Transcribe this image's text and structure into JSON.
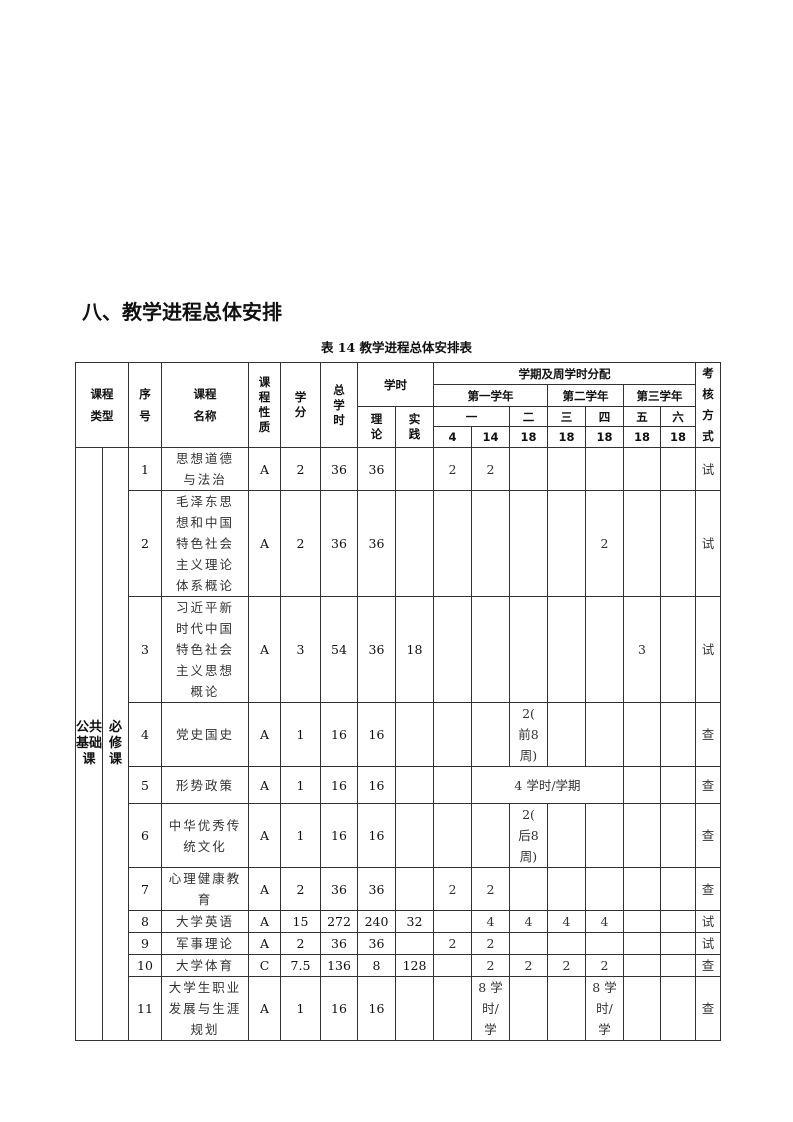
{
  "section_title": "八、教学进程总体安排",
  "table_caption": "表 14   教学进程总体安排表",
  "header": {
    "course_type": "课程\n类型",
    "seq": "序\n号",
    "course_name": "课程\n名称",
    "nature": "课程性质",
    "credit": "学分",
    "total_hours": "总学时",
    "hours": "学时",
    "theory": "理论",
    "practice": "实践",
    "semester_dist": "学期及周学时分配",
    "exam": "考核方式",
    "years": [
      "第一学年",
      "第二学年",
      "第三学年"
    ],
    "semesters": [
      "一",
      "二",
      "三",
      "四",
      "五",
      "六"
    ],
    "weeks": [
      "4",
      "14",
      "18",
      "18",
      "18",
      "18",
      "18"
    ]
  },
  "category": {
    "main": "公共基础课",
    "sub": "必修课"
  },
  "rows": [
    {
      "seq": "1",
      "name": "思想道德\n与法治",
      "nature": "A",
      "credit": "2",
      "total": "36",
      "theory": "36",
      "practice": "",
      "sem": [
        "2",
        "2",
        "",
        "",
        "",
        "",
        ""
      ],
      "exam": "试"
    },
    {
      "seq": "2",
      "name": "毛泽东思\n想和中国\n特色社会\n主义理论\n体系概论",
      "nature": "A",
      "credit": "2",
      "total": "36",
      "theory": "36",
      "practice": "",
      "sem": [
        "",
        "",
        "",
        "",
        "2",
        "",
        ""
      ],
      "exam": "试"
    },
    {
      "seq": "3",
      "name": "习近平新\n时代中国\n特色社会\n主义思想\n概论",
      "nature": "A",
      "credit": "3",
      "total": "54",
      "theory": "36",
      "practice": "18",
      "sem": [
        "",
        "",
        "",
        "",
        "",
        "3",
        ""
      ],
      "exam": "试"
    },
    {
      "seq": "4",
      "name": "党史国史",
      "nature": "A",
      "credit": "1",
      "total": "16",
      "theory": "16",
      "practice": "",
      "sem": [
        "",
        "",
        "2(\n前8\n周)",
        "",
        "",
        "",
        ""
      ],
      "exam": "查"
    },
    {
      "seq": "5",
      "name": "形势政策",
      "nature": "A",
      "credit": "1",
      "total": "16",
      "theory": "16",
      "practice": "",
      "merged": "4 学时/学期",
      "exam": "查"
    },
    {
      "seq": "6",
      "name": "中华优秀传\n统文化",
      "nature": "A",
      "credit": "1",
      "total": "16",
      "theory": "16",
      "practice": "",
      "sem": [
        "",
        "",
        "2(\n后8\n周)",
        "",
        "",
        "",
        ""
      ],
      "exam": "查"
    },
    {
      "seq": "7",
      "name": "心理健康教\n育",
      "nature": "A",
      "credit": "2",
      "total": "36",
      "theory": "36",
      "practice": "",
      "sem": [
        "2",
        "2",
        "",
        "",
        "",
        "",
        ""
      ],
      "exam": "查"
    },
    {
      "seq": "8",
      "name": "大学英语",
      "nature": "A",
      "credit": "15",
      "total": "272",
      "theory": "240",
      "practice": "32",
      "sem": [
        "",
        "4",
        "4",
        "4",
        "4",
        "",
        ""
      ],
      "exam": "试"
    },
    {
      "seq": "9",
      "name": "军事理论",
      "nature": "A",
      "credit": "2",
      "total": "36",
      "theory": "36",
      "practice": "",
      "sem": [
        "2",
        "2",
        "",
        "",
        "",
        "",
        ""
      ],
      "exam": "试"
    },
    {
      "seq": "10",
      "name": "大学体育",
      "nature": "C",
      "credit": "7.5",
      "total": "136",
      "theory": "8",
      "practice": "128",
      "sem": [
        "",
        "2",
        "2",
        "2",
        "2",
        "",
        ""
      ],
      "exam": "查"
    },
    {
      "seq": "11",
      "name": "大学生职业\n发展与生涯\n规划",
      "nature": "A",
      "credit": "1",
      "total": "16",
      "theory": "16",
      "practice": "",
      "sem": [
        "",
        "8 学\n时/\n学",
        "",
        "",
        "8 学\n时/\n学",
        "",
        ""
      ],
      "exam": "查"
    }
  ]
}
